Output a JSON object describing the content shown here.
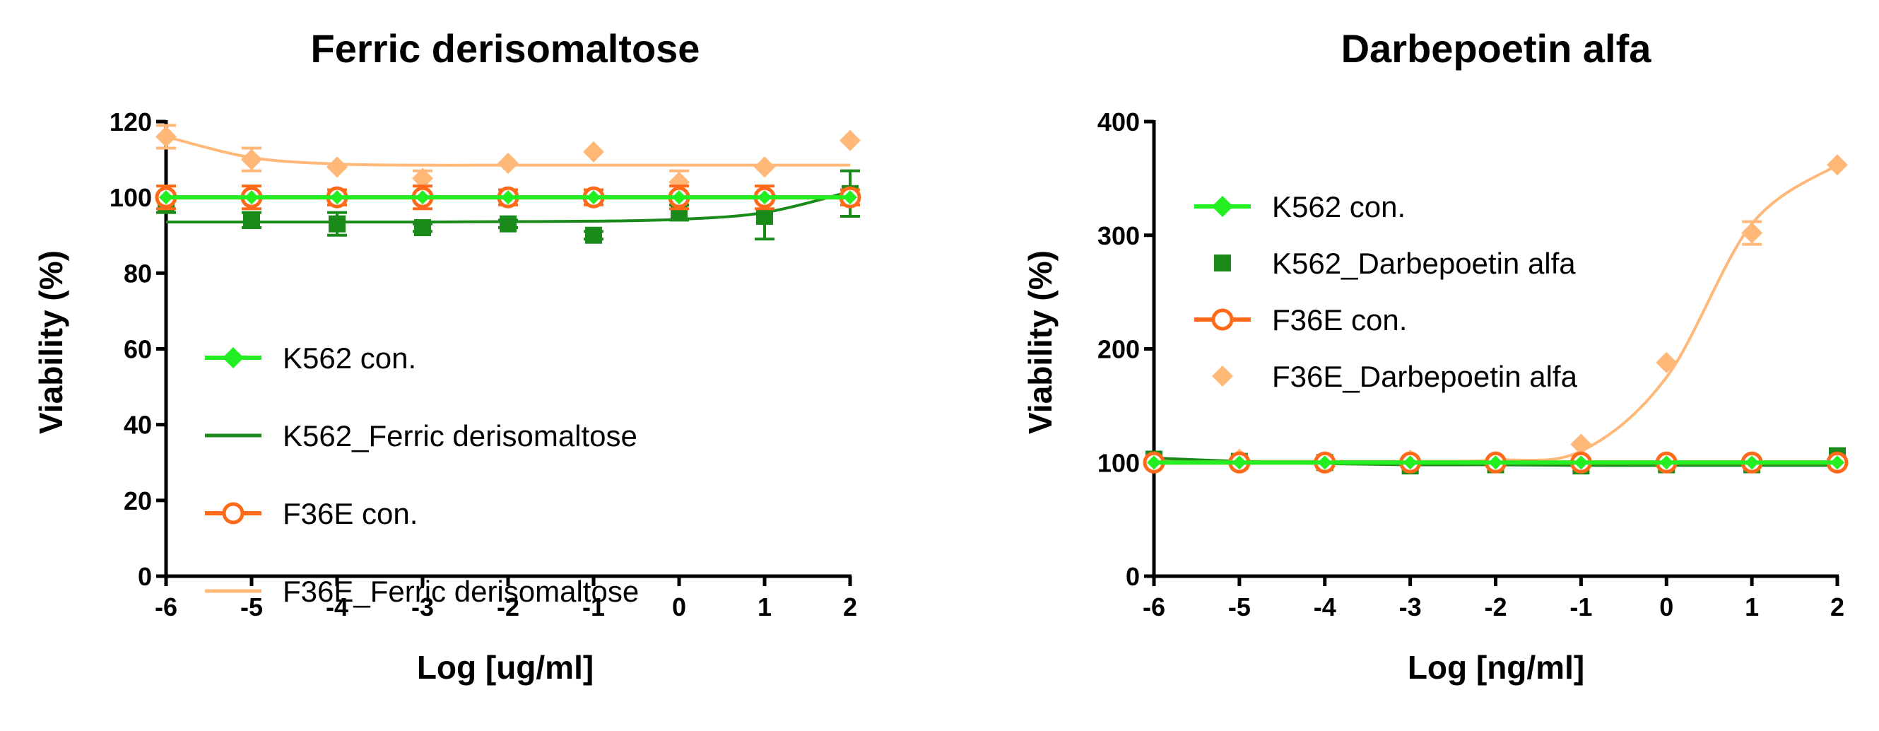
{
  "chart_data": [
    {
      "id": "ferric",
      "type": "line",
      "title": "Ferric derisomaltose",
      "xlabel": "Log [ug/ml]",
      "ylabel": "Viability (%)",
      "xlim": [
        -6,
        2
      ],
      "ylim": [
        0,
        120
      ],
      "xticks": [
        "-6",
        "-5",
        "-4",
        "-3",
        "-2",
        "-1",
        "0",
        "1",
        "2"
      ],
      "yticks": [
        "0",
        "20",
        "40",
        "60",
        "80",
        "100",
        "120"
      ],
      "legend_position": "center-left",
      "series": [
        {
          "name": "K562 con.",
          "color": "#22ee22",
          "marker": "diamond-line",
          "x": [
            -6,
            -5,
            -4,
            -3,
            -2,
            -1,
            0,
            1,
            2
          ],
          "y": [
            100,
            100,
            100,
            100,
            100,
            100,
            100,
            100,
            100
          ]
        },
        {
          "name": "K562_Ferric derisomaltose",
          "color": "#1a8a1a",
          "marker": "line",
          "points_marker": "square",
          "x": [
            -6,
            -5,
            -4,
            -3,
            -2,
            -1,
            0,
            1,
            2
          ],
          "y": [
            98,
            94,
            93,
            92,
            93,
            90,
            96,
            95,
            101
          ],
          "err": [
            2,
            2,
            3,
            1,
            1,
            1,
            2,
            6,
            6
          ],
          "fit_y": [
            93.5,
            93.5,
            93.5,
            93.5,
            93.6,
            93.7,
            94.2,
            96.0,
            101.5
          ]
        },
        {
          "name": "F36E con.",
          "color": "#ff6a1a",
          "marker": "circle-line",
          "x": [
            -6,
            -5,
            -4,
            -3,
            -2,
            -1,
            0,
            1,
            2
          ],
          "y": [
            100,
            100,
            100,
            100,
            100,
            100,
            100,
            100,
            100
          ],
          "err": [
            3,
            3,
            2,
            3,
            2,
            2,
            3,
            3,
            2
          ]
        },
        {
          "name": "F36E_Ferric derisomaltose",
          "color": "#ffb878",
          "marker": "line",
          "points_marker": "diamond",
          "x": [
            -6,
            -5,
            -4,
            -3,
            -2,
            -1,
            0,
            1,
            2
          ],
          "y": [
            116,
            110,
            108,
            105,
            109,
            112,
            104,
            108,
            115
          ],
          "err": [
            3,
            3,
            0,
            2,
            0,
            0,
            3,
            0,
            0
          ],
          "fit_y": [
            116,
            110.5,
            108.8,
            108.5,
            108.5,
            108.5,
            108.5,
            108.5,
            108.5
          ]
        }
      ]
    },
    {
      "id": "darbe",
      "type": "line",
      "title": "Darbepoetin alfa",
      "xlabel": "Log [ng/ml]",
      "ylabel": "Viability (%)",
      "xlim": [
        -6,
        2
      ],
      "ylim": [
        0,
        400
      ],
      "xticks": [
        "-6",
        "-5",
        "-4",
        "-3",
        "-2",
        "-1",
        "0",
        "1",
        "2"
      ],
      "yticks": [
        "0",
        "100",
        "200",
        "300",
        "400"
      ],
      "legend_position": "top-left",
      "series": [
        {
          "name": "K562 con.",
          "color": "#22ee22",
          "marker": "diamond-line",
          "x": [
            -6,
            -5,
            -4,
            -3,
            -2,
            -1,
            0,
            1,
            2
          ],
          "y": [
            100,
            100,
            100,
            100,
            100,
            100,
            100,
            100,
            100
          ]
        },
        {
          "name": "K562_Darbepoetin alfa",
          "color": "#1a8a1a",
          "marker": "square",
          "x": [
            -6,
            -5,
            -4,
            -3,
            -2,
            -1,
            0,
            1,
            2
          ],
          "y": [
            103,
            101,
            100,
            97,
            98,
            97,
            98,
            98,
            106
          ],
          "fit_y": [
            104,
            101,
            99,
            98,
            98,
            97.5,
            97.5,
            97.5,
            97.5
          ]
        },
        {
          "name": "F36E con.",
          "color": "#ff6a1a",
          "marker": "circle-line",
          "x": [
            -6,
            -5,
            -4,
            -3,
            -2,
            -1,
            0,
            1,
            2
          ],
          "y": [
            100,
            100,
            100,
            100,
            100,
            100,
            100,
            100,
            100
          ]
        },
        {
          "name": "F36E_Darbepoetin alfa",
          "color": "#ffb878",
          "marker": "diamond",
          "x": [
            -6,
            -5,
            -4,
            -3,
            -2,
            -1,
            0,
            1,
            2
          ],
          "y": [
            100,
            103,
            101,
            102,
            101,
            116,
            188,
            302,
            362
          ],
          "err": [
            0,
            0,
            0,
            0,
            0,
            0,
            0,
            10,
            0
          ],
          "fit_y": [
            101,
            101,
            101,
            101,
            102,
            110,
            175,
            310,
            362
          ]
        }
      ]
    }
  ]
}
